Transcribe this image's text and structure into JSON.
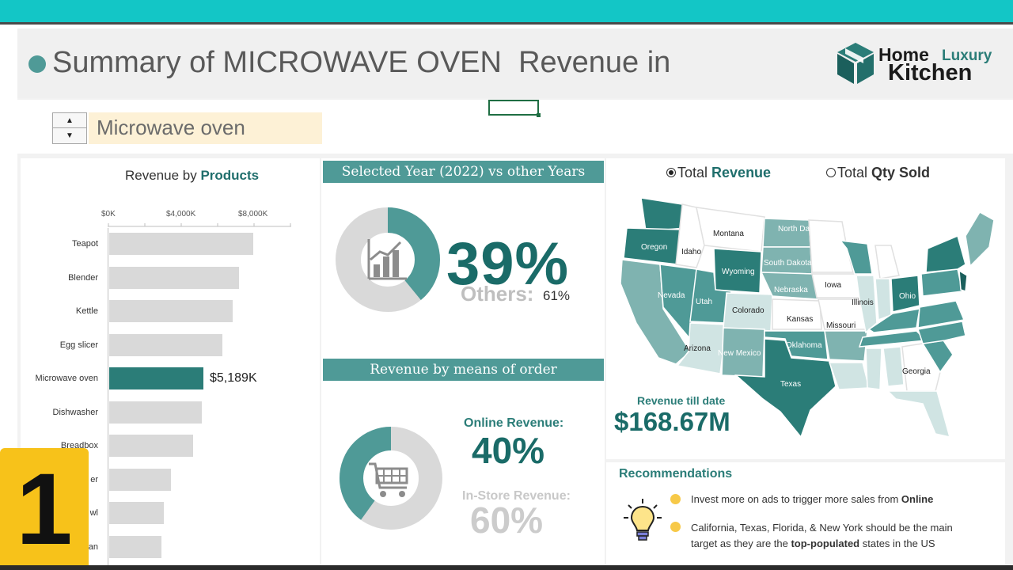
{
  "header": {
    "title": "Summary of MICROWAVE OVEN  Revenue in",
    "logo": {
      "home": "Home",
      "luxury": "Luxury",
      "kitchen": "Kitchen"
    }
  },
  "selector": {
    "product": "Microwave oven"
  },
  "products_chart": {
    "title_prefix": "Revenue by ",
    "title_bold": "Products",
    "ticks": [
      "$0K",
      "$4,000K",
      "$8,000K"
    ],
    "highlight_label": "$5,189K"
  },
  "chart_data": [
    {
      "type": "bar",
      "orientation": "horizontal",
      "title": "Revenue by Products",
      "categories": [
        "Teapot",
        "Blender",
        "Kettle",
        "Egg slicer",
        "Microwave oven",
        "Dishwasher",
        "Breadbox",
        "er",
        "wl",
        "an"
      ],
      "values": [
        7900,
        7150,
        6800,
        6200,
        5189,
        5100,
        4600,
        3400,
        3000,
        2850
      ],
      "highlight": "Microwave oven",
      "xlim": [
        0,
        10000
      ],
      "colors": {
        "bar": "#d9d9d9",
        "highlight": "#2b7d78"
      }
    },
    {
      "type": "pie",
      "title": "Selected Year (2022) vs other Years",
      "labels": [
        "Selected Year",
        "Others"
      ],
      "values": [
        39,
        61
      ],
      "colors": [
        "#4f9a97",
        "#d9d9d9"
      ]
    },
    {
      "type": "pie",
      "title": "Revenue by means of order",
      "labels": [
        "Online Revenue",
        "In-Store Revenue"
      ],
      "values": [
        40,
        60
      ],
      "colors": [
        "#4f9a97",
        "#d9d9d9"
      ]
    }
  ],
  "year_panel": {
    "title": "Selected Year (2022) vs other Years",
    "big_value": "39%",
    "others_label": "Others:",
    "others_value": "61%"
  },
  "order_panel": {
    "title": "Revenue by means of order",
    "online_label": "Online Revenue:",
    "online_value": "40%",
    "store_label": "In-Store Revenue:",
    "store_value": "60%"
  },
  "map_panel": {
    "radio_revenue_prefix": "Total ",
    "radio_revenue_bold": "Revenue",
    "radio_qty_prefix": "Total ",
    "radio_qty_bold": "Qty Sold",
    "selected": "revenue",
    "revenue_label": "Revenue till date",
    "revenue_value": "$168.67M",
    "states": [
      {
        "name": "Montana"
      },
      {
        "name": "North Dakota"
      },
      {
        "name": "Oregon"
      },
      {
        "name": "Idaho"
      },
      {
        "name": "South Dakota"
      },
      {
        "name": "Wyoming"
      },
      {
        "name": "Nevada"
      },
      {
        "name": "Utah"
      },
      {
        "name": "Nebraska"
      },
      {
        "name": "Iowa"
      },
      {
        "name": "Illinois"
      },
      {
        "name": "Ohio"
      },
      {
        "name": "Colorado"
      },
      {
        "name": "Kansas"
      },
      {
        "name": "Missouri"
      },
      {
        "name": "Arizona"
      },
      {
        "name": "New Mexico"
      },
      {
        "name": "Oklahoma"
      },
      {
        "name": "Texas"
      },
      {
        "name": "Georgia"
      }
    ]
  },
  "recommendations": {
    "title": "Recommendations",
    "item1_text": "Invest more on ads to trigger more sales from ",
    "item1_bold": "Online",
    "item2_line1": "California, Texas, Florida, & New York should be the main",
    "item2_line2a": "target as they are the ",
    "item2_bold": "top-populated",
    "item2_line2b": " states in the US"
  },
  "badge": {
    "number": "1"
  },
  "colors": {
    "accent": "#2b7d78",
    "panel_header": "#4f9a97",
    "top_bar": "#13c6c6",
    "badge": "#f7c21a"
  }
}
